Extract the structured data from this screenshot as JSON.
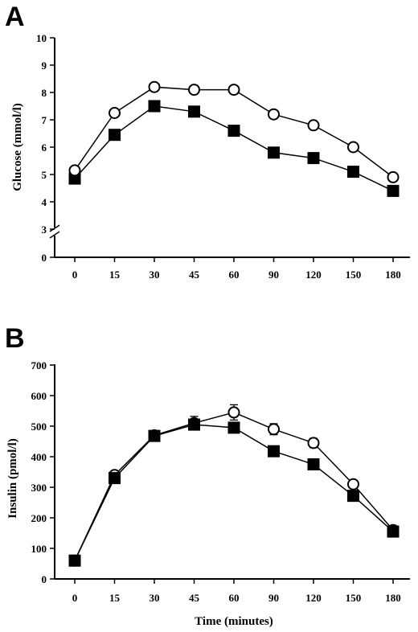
{
  "panels": {
    "a_label": "A",
    "b_label": "B"
  },
  "chart_data": [
    {
      "type": "line",
      "panel": "A",
      "categories": [
        "0",
        "15",
        "30",
        "45",
        "60",
        "90",
        "120",
        "150",
        "180"
      ],
      "ylabel": "Glucose (mmol/l)",
      "xlabel": "",
      "y_ticks": [
        0,
        3,
        4,
        5,
        6,
        7,
        8,
        9,
        10
      ],
      "y_axis_break": [
        0,
        3
      ],
      "ylim": [
        3,
        10
      ],
      "grid": false,
      "series": [
        {
          "marker": "open-circle",
          "values": [
            5.15,
            7.25,
            8.2,
            8.1,
            8.1,
            7.2,
            6.8,
            6.0,
            4.9
          ]
        },
        {
          "marker": "filled-square",
          "values": [
            4.85,
            6.45,
            7.5,
            7.3,
            6.6,
            5.8,
            5.6,
            5.1,
            4.4
          ]
        }
      ]
    },
    {
      "type": "line",
      "panel": "B",
      "categories": [
        "0",
        "15",
        "30",
        "45",
        "60",
        "90",
        "120",
        "150",
        "180"
      ],
      "ylabel": "Insulin (pmol/l)",
      "xlabel": "Time (minutes)",
      "y_ticks": [
        0,
        100,
        200,
        300,
        400,
        500,
        600,
        700
      ],
      "ylim": [
        0,
        700
      ],
      "grid": false,
      "series": [
        {
          "marker": "open-circle",
          "values": [
            60,
            340,
            470,
            510,
            545,
            490,
            445,
            310,
            160
          ],
          "error": [
            8,
            10,
            10,
            22,
            25,
            18,
            15,
            12,
            10
          ]
        },
        {
          "marker": "filled-square",
          "values": [
            60,
            330,
            468,
            505,
            495,
            418,
            375,
            272,
            155
          ],
          "error": [
            6,
            10,
            8,
            12,
            12,
            10,
            10,
            10,
            8
          ]
        }
      ]
    }
  ]
}
